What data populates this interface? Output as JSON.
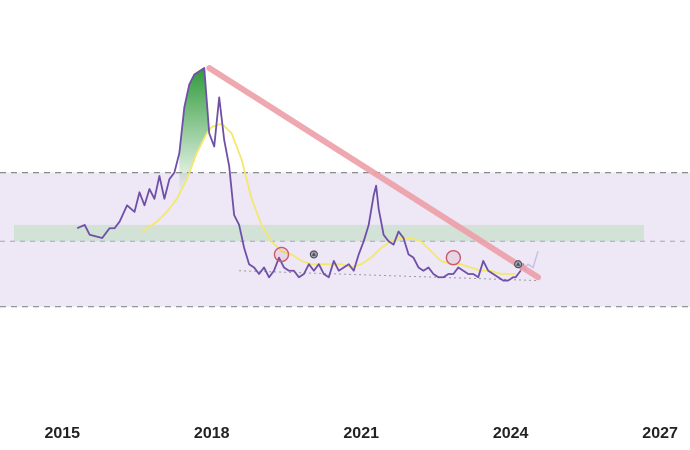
{
  "chart_data": {
    "type": "line",
    "title": "",
    "xlabel": "",
    "ylabel": "",
    "x_ticks": [
      "2015",
      "2018",
      "2021",
      "2024",
      "2027"
    ],
    "xlim": [
      2013.75,
      2027.6
    ],
    "ylim": [
      0,
      100
    ],
    "grid": false,
    "legend": "none",
    "colors": {
      "price": "#6f4fa8",
      "moving_average": "#f3e86a",
      "trendline": "#ee9fa8",
      "peak_fill": "#2f9a3a",
      "band": "#ede7f6",
      "band_border": "#8a8a8a",
      "zone": "#d2e2d6",
      "support": "#9a9a9a",
      "circle_marker": "#c9596b",
      "triangle_marker": "#4d4d4d",
      "projection": "#c6bfe3"
    },
    "bands": [
      {
        "y_top": 68,
        "y_bottom": 27
      },
      {
        "y_top": 52,
        "y_bottom": 47
      }
    ],
    "midline_y": 47,
    "series": [
      {
        "key": "price",
        "x": [
          2015.3,
          2015.45,
          2015.55,
          2015.8,
          2015.95,
          2016.05,
          2016.15,
          2016.3,
          2016.45,
          2016.55,
          2016.65,
          2016.75,
          2016.85,
          2016.95,
          2017.05,
          2017.15,
          2017.25,
          2017.35,
          2017.45,
          2017.55,
          2017.65,
          2017.75,
          2017.85,
          2017.95,
          2018.05,
          2018.15,
          2018.25,
          2018.35,
          2018.45,
          2018.55,
          2018.65,
          2018.75,
          2018.85,
          2018.95,
          2019.05,
          2019.15,
          2019.25,
          2019.35,
          2019.45,
          2019.55,
          2019.65,
          2019.75,
          2019.85,
          2019.95,
          2020.05,
          2020.15,
          2020.25,
          2020.35,
          2020.45,
          2020.55,
          2020.65,
          2020.75,
          2020.85,
          2020.95,
          2021.05,
          2021.15,
          2021.25,
          2021.3,
          2021.35,
          2021.45,
          2021.55,
          2021.65,
          2021.75,
          2021.85,
          2021.95,
          2022.05,
          2022.15,
          2022.25,
          2022.35,
          2022.45,
          2022.55,
          2022.65,
          2022.75,
          2022.85,
          2022.95,
          2023.05,
          2023.15,
          2023.25,
          2023.35,
          2023.45,
          2023.55,
          2023.65,
          2023.75,
          2023.85,
          2023.95,
          2024.05,
          2024.1,
          2024.15,
          2024.2,
          2024.25,
          2024.3
        ],
        "y": [
          51,
          52,
          49,
          48,
          51,
          51,
          53,
          58,
          56,
          62,
          58,
          63,
          60,
          67,
          60,
          66,
          68,
          74,
          88,
          95,
          98,
          99,
          100,
          80,
          76,
          91,
          78,
          70,
          55,
          52,
          45,
          40,
          39,
          37,
          39,
          36,
          38,
          42,
          39,
          38,
          38,
          36,
          37,
          40,
          38,
          40,
          37,
          36,
          41,
          38,
          39,
          40,
          38,
          43,
          47,
          52,
          61,
          64,
          57,
          49,
          47,
          46,
          50,
          48,
          43,
          42,
          39,
          38,
          39,
          37,
          36,
          36,
          37,
          37,
          39,
          38,
          37,
          37,
          36,
          41,
          38,
          37,
          36,
          35,
          35,
          36,
          36,
          37,
          38,
          40,
          38
        ]
      },
      {
        "key": "moving_average",
        "x": [
          2016.6,
          2016.9,
          2017.1,
          2017.3,
          2017.5,
          2017.7,
          2017.9,
          2018.0,
          2018.2,
          2018.4,
          2018.6,
          2018.8,
          2019.0,
          2019.2,
          2019.4,
          2019.6,
          2019.8,
          2020.0,
          2020.2,
          2020.4,
          2020.6,
          2020.8,
          2021.0,
          2021.2,
          2021.4,
          2021.6,
          2021.8,
          2022.0,
          2022.2,
          2022.4,
          2022.6,
          2022.8,
          2023.0,
          2023.2,
          2023.4,
          2023.6,
          2023.8,
          2024.0,
          2024.1
        ],
        "y": [
          50,
          53,
          56,
          60,
          66,
          74,
          80,
          82,
          83,
          80,
          72,
          60,
          52,
          47,
          44,
          43,
          41,
          40,
          40,
          40,
          40,
          39,
          40,
          42,
          45,
          47,
          48,
          48,
          47,
          44,
          41,
          40,
          40,
          39,
          38,
          38,
          37,
          37,
          37
        ]
      },
      {
        "key": "projection",
        "x": [
          2024.2,
          2024.35,
          2024.45,
          2024.55
        ],
        "y": [
          38,
          40,
          39,
          44
        ]
      }
    ],
    "trendline": {
      "x": [
        2017.95,
        2024.55
      ],
      "y": [
        100,
        36
      ]
    },
    "support_line": {
      "x": [
        2018.55,
        2024.55
      ],
      "y": [
        38,
        35
      ]
    },
    "markers": [
      {
        "shape": "circle",
        "x": 2019.4,
        "y": 43
      },
      {
        "shape": "circle",
        "x": 2022.85,
        "y": 42
      },
      {
        "shape": "triangle",
        "x": 2020.05,
        "y": 43
      },
      {
        "shape": "triangle",
        "x": 2024.15,
        "y": 40
      }
    ]
  }
}
